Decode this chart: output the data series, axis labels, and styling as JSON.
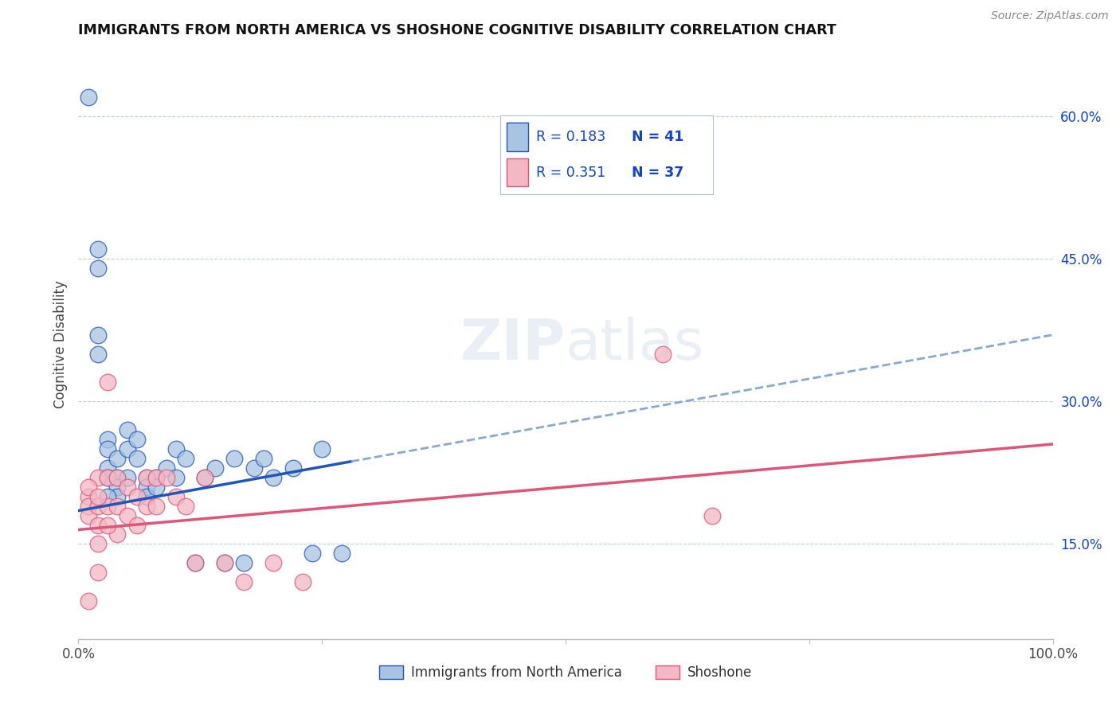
{
  "title": "IMMIGRANTS FROM NORTH AMERICA VS SHOSHONE COGNITIVE DISABILITY CORRELATION CHART",
  "source": "Source: ZipAtlas.com",
  "ylabel": "Cognitive Disability",
  "xlim": [
    0.0,
    1.0
  ],
  "ylim": [
    0.05,
    0.67
  ],
  "x_ticks": [
    0.0,
    0.25,
    0.5,
    0.75,
    1.0
  ],
  "x_tick_labels": [
    "0.0%",
    "",
    "",
    "",
    "100.0%"
  ],
  "y_ticks": [
    0.15,
    0.3,
    0.45,
    0.6
  ],
  "y_tick_labels": [
    "15.0%",
    "30.0%",
    "45.0%",
    "60.0%"
  ],
  "blue_R": 0.183,
  "blue_N": 41,
  "pink_R": 0.351,
  "pink_N": 37,
  "blue_scatter_color": "#a8c4e0",
  "pink_scatter_color": "#f4b8c4",
  "blue_line_color": "#2255bb",
  "pink_line_color": "#dd5577",
  "dashed_line_color": "#88aad0",
  "watermark": "ZIPatlas",
  "blue_scatter_x": [
    0.01,
    0.02,
    0.02,
    0.02,
    0.02,
    0.03,
    0.03,
    0.03,
    0.03,
    0.04,
    0.04,
    0.04,
    0.04,
    0.05,
    0.05,
    0.05,
    0.06,
    0.06,
    0.07,
    0.07,
    0.07,
    0.08,
    0.08,
    0.09,
    0.1,
    0.1,
    0.11,
    0.12,
    0.13,
    0.14,
    0.15,
    0.16,
    0.17,
    0.18,
    0.19,
    0.2,
    0.22,
    0.24,
    0.25,
    0.27,
    0.03
  ],
  "blue_scatter_y": [
    0.62,
    0.46,
    0.44,
    0.37,
    0.35,
    0.26,
    0.25,
    0.23,
    0.22,
    0.24,
    0.22,
    0.21,
    0.2,
    0.27,
    0.25,
    0.22,
    0.26,
    0.24,
    0.22,
    0.21,
    0.2,
    0.22,
    0.21,
    0.23,
    0.25,
    0.22,
    0.24,
    0.13,
    0.22,
    0.23,
    0.13,
    0.24,
    0.13,
    0.23,
    0.24,
    0.22,
    0.23,
    0.14,
    0.25,
    0.14,
    0.2
  ],
  "pink_scatter_x": [
    0.01,
    0.01,
    0.01,
    0.01,
    0.02,
    0.02,
    0.02,
    0.02,
    0.02,
    0.03,
    0.03,
    0.03,
    0.04,
    0.04,
    0.04,
    0.05,
    0.05,
    0.06,
    0.06,
    0.07,
    0.07,
    0.08,
    0.08,
    0.09,
    0.1,
    0.11,
    0.12,
    0.13,
    0.15,
    0.17,
    0.2,
    0.23,
    0.6,
    0.65,
    0.01,
    0.02,
    0.03
  ],
  "pink_scatter_y": [
    0.2,
    0.19,
    0.18,
    0.09,
    0.22,
    0.19,
    0.17,
    0.15,
    0.12,
    0.32,
    0.22,
    0.19,
    0.22,
    0.19,
    0.16,
    0.21,
    0.18,
    0.2,
    0.17,
    0.22,
    0.19,
    0.22,
    0.19,
    0.22,
    0.2,
    0.19,
    0.13,
    0.22,
    0.13,
    0.11,
    0.13,
    0.11,
    0.35,
    0.18,
    0.21,
    0.2,
    0.17
  ],
  "legend_R_color": "#1144cc",
  "legend_text_color": "#333333",
  "grid_color": "#c0cfe0",
  "background_color": "#ffffff"
}
